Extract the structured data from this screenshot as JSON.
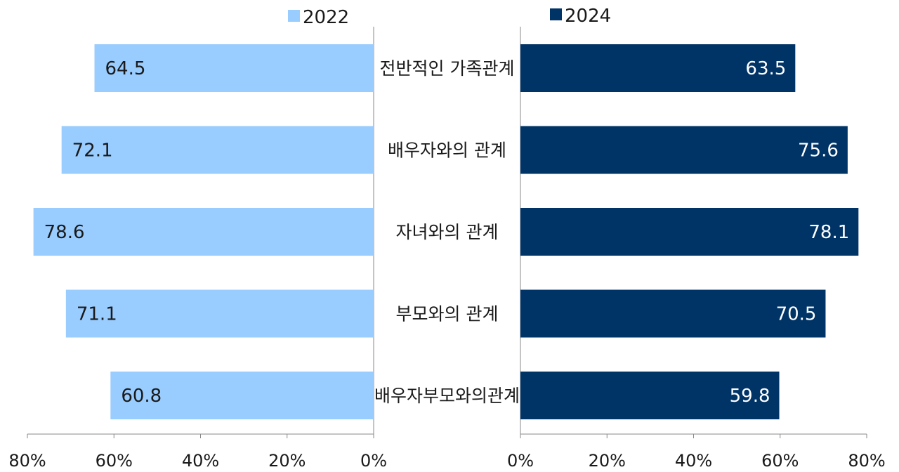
{
  "chart_data": {
    "type": "bar",
    "orientation": "horizontal-butterfly",
    "categories": [
      "전반적인 가족관계",
      "배우자와의 관계",
      "자녀와의 관계",
      "부모와의 관계",
      "배우자부모와의관계"
    ],
    "series": [
      {
        "name": "2022",
        "values": [
          64.5,
          72.1,
          78.6,
          71.1,
          60.8
        ],
        "color": "#99CCFF",
        "label_color": "#1a1a1a"
      },
      {
        "name": "2024",
        "values": [
          63.5,
          75.6,
          78.1,
          70.5,
          59.8
        ],
        "color": "#003366",
        "label_color": "#ffffff"
      }
    ],
    "x_range": [
      0,
      80
    ],
    "x_ticks": [
      "0%",
      "20%",
      "40%",
      "60%",
      "80%"
    ],
    "legend_placement": "top",
    "grid": false,
    "title": "",
    "xlabel": "",
    "ylabel": ""
  }
}
